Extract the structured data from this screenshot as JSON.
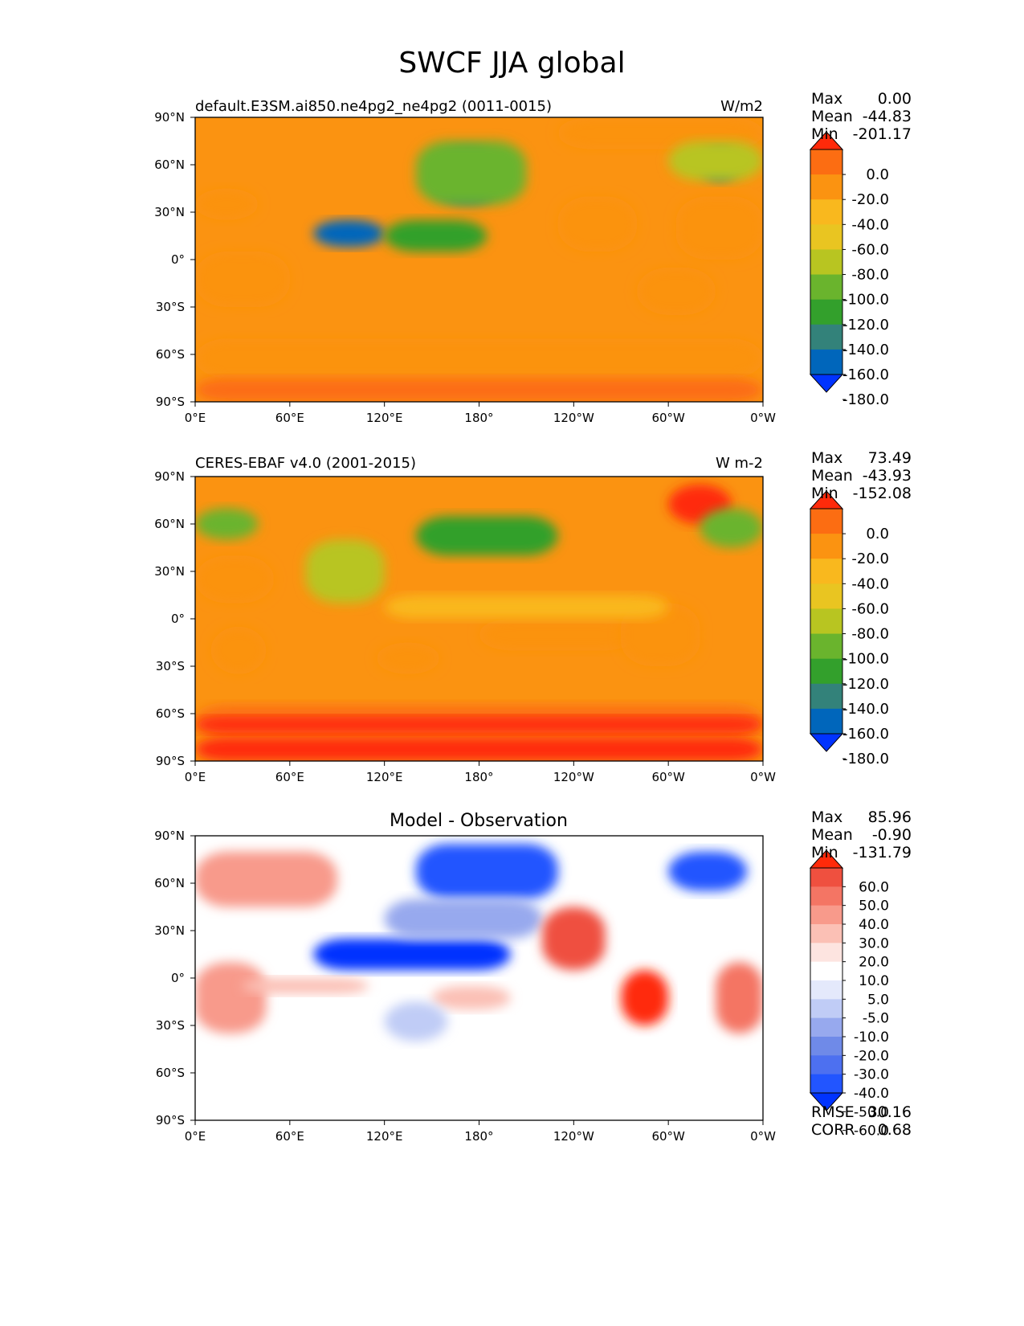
{
  "title": "SWCF JJA global",
  "axes": {
    "lon_ticks": [
      "0°E",
      "60°E",
      "120°E",
      "180°",
      "120°W",
      "60°W",
      "0°W"
    ],
    "lat_ticks": [
      "90°N",
      "60°N",
      "30°N",
      "0°",
      "30°S",
      "60°S",
      "90°S"
    ]
  },
  "colors": {
    "abs_levels": [
      "#0033ff",
      "#0066bb",
      "#33827a",
      "#33a02c",
      "#6ab42d",
      "#b8c521",
      "#e9c521",
      "#f9b81e",
      "#fb9311",
      "#fc6d12",
      "#ff2a0a"
    ],
    "diff_levels": [
      "#0033ff",
      "#2255ff",
      "#4d70f0",
      "#6f8ae8",
      "#97a9ee",
      "#c0ccf6",
      "#e4e9fb",
      "#ffffff",
      "#fde4e0",
      "#fbc0b5",
      "#f89a8b",
      "#f47564",
      "#ef503f",
      "#ff2a0a"
    ]
  },
  "panels": [
    {
      "id": "test",
      "left_title": "default.E3SM.ai850.ne4pg2_ne4pg2 (0011-0015)",
      "right_title": "W/m2",
      "center_title": "",
      "stats": [
        {
          "label": "Max",
          "value": "0.00"
        },
        {
          "label": "Mean",
          "value": "-44.83"
        },
        {
          "label": "Min",
          "value": "-201.17"
        }
      ],
      "colorbar_labels": [
        "0.0",
        "-20.0",
        "-40.0",
        "-60.0",
        "-80.0",
        "-100.0",
        "-120.0",
        "-140.0",
        "-160.0",
        "-180.0"
      ]
    },
    {
      "id": "reference",
      "left_title": "CERES-EBAF v4.0 (2001-2015)",
      "right_title": "W m-2",
      "center_title": "",
      "stats": [
        {
          "label": "Max",
          "value": "73.49"
        },
        {
          "label": "Mean",
          "value": "-43.93"
        },
        {
          "label": "Min",
          "value": "-152.08"
        }
      ],
      "colorbar_labels": [
        "0.0",
        "-20.0",
        "-40.0",
        "-60.0",
        "-80.0",
        "-100.0",
        "-120.0",
        "-140.0",
        "-160.0",
        "-180.0"
      ]
    },
    {
      "id": "diff",
      "left_title": "",
      "right_title": "",
      "center_title": "Model - Observation",
      "stats": [
        {
          "label": "Max",
          "value": "85.96"
        },
        {
          "label": "Mean",
          "value": "-0.90"
        },
        {
          "label": "Min",
          "value": "-131.79"
        }
      ],
      "colorbar_labels": [
        "60.0",
        "50.0",
        "40.0",
        "30.0",
        "20.0",
        "10.0",
        "5.0",
        "-5.0",
        "-10.0",
        "-20.0",
        "-30.0",
        "-40.0",
        "-50.0",
        "-60.0"
      ],
      "metrics": [
        {
          "label": "RMSE",
          "value": "30.16"
        },
        {
          "label": "CORR",
          "value": "0.68"
        }
      ]
    }
  ],
  "chart_data": [
    {
      "type": "heatmap",
      "title": "default.E3SM.ai850.ne4pg2_ne4pg2 (0011-0015)",
      "units": "W/m2",
      "xlim": [
        0,
        360
      ],
      "ylim": [
        -90,
        90
      ],
      "levels": [
        -180,
        -160,
        -140,
        -120,
        -100,
        -80,
        -60,
        -40,
        -20,
        0
      ],
      "max": 0.0,
      "mean": -44.83,
      "min": -201.17,
      "background": -35,
      "features": [
        {
          "lon": [
            230,
            360
          ],
          "lat": [
            70,
            90
          ],
          "value": -35
        },
        {
          "lon": [
            0,
            360
          ],
          "lat": [
            -75,
            -50
          ],
          "value": -22
        },
        {
          "lon": [
            0,
            360
          ],
          "lat": [
            -90,
            -75
          ],
          "value": -20
        },
        {
          "lon": [
            0,
            60
          ],
          "lat": [
            -30,
            5
          ],
          "value": -22
        },
        {
          "lon": [
            150,
            195
          ],
          "lat": [
            35,
            70
          ],
          "value": -160
        },
        {
          "lon": [
            140,
            210
          ],
          "lat": [
            35,
            75
          ],
          "value": -120
        },
        {
          "lon": [
            75,
            120
          ],
          "lat": [
            8,
            25
          ],
          "value": -170
        },
        {
          "lon": [
            120,
            185
          ],
          "lat": [
            5,
            25
          ],
          "value": -130
        },
        {
          "lon": [
            320,
            345
          ],
          "lat": [
            50,
            70
          ],
          "value": -150
        },
        {
          "lon": [
            300,
            360
          ],
          "lat": [
            50,
            75
          ],
          "value": -100
        },
        {
          "lon": [
            230,
            280
          ],
          "lat": [
            5,
            40
          ],
          "value": -22
        },
        {
          "lon": [
            280,
            330
          ],
          "lat": [
            -35,
            -5
          ],
          "value": -22
        },
        {
          "lon": [
            0,
            40
          ],
          "lat": [
            25,
            45
          ],
          "value": -22
        },
        {
          "lon": [
            305,
            360
          ],
          "lat": [
            0,
            40
          ],
          "value": -22
        }
      ]
    },
    {
      "type": "heatmap",
      "title": "CERES-EBAF v4.0 (2001-2015)",
      "units": "W m-2",
      "xlim": [
        0,
        360
      ],
      "ylim": [
        -90,
        90
      ],
      "levels": [
        -180,
        -160,
        -140,
        -120,
        -100,
        -80,
        -60,
        -40,
        -20,
        0
      ],
      "max": 73.49,
      "mean": -43.93,
      "min": -152.08,
      "background": -35,
      "features": [
        {
          "lon": [
            0,
            360
          ],
          "lat": [
            -75,
            -55
          ],
          "value": -15
        },
        {
          "lon": [
            0,
            360
          ],
          "lat": [
            -90,
            -75
          ],
          "value": 5
        },
        {
          "lon": [
            0,
            360
          ],
          "lat": [
            -72,
            -62
          ],
          "value": 5
        },
        {
          "lon": [
            300,
            340
          ],
          "lat": [
            60,
            85
          ],
          "value": 5
        },
        {
          "lon": [
            0,
            50
          ],
          "lat": [
            10,
            40
          ],
          "value": -22
        },
        {
          "lon": [
            10,
            45
          ],
          "lat": [
            -35,
            -5
          ],
          "value": -22
        },
        {
          "lon": [
            140,
            230
          ],
          "lat": [
            40,
            65
          ],
          "value": -130
        },
        {
          "lon": [
            70,
            120
          ],
          "lat": [
            10,
            50
          ],
          "value": -85
        },
        {
          "lon": [
            0,
            40
          ],
          "lat": [
            50,
            70
          ],
          "value": -110
        },
        {
          "lon": [
            320,
            360
          ],
          "lat": [
            45,
            70
          ],
          "value": -120
        },
        {
          "lon": [
            180,
            280
          ],
          "lat": [
            -20,
            0
          ],
          "value": -22
        },
        {
          "lon": [
            270,
            320
          ],
          "lat": [
            -30,
            10
          ],
          "value": -22
        },
        {
          "lon": [
            115,
            155
          ],
          "lat": [
            -35,
            -15
          ],
          "value": -22
        },
        {
          "lon": [
            120,
            300
          ],
          "lat": [
            0,
            15
          ],
          "value": -60
        }
      ]
    },
    {
      "type": "heatmap",
      "title": "Model - Observation",
      "xlim": [
        0,
        360
      ],
      "ylim": [
        -90,
        90
      ],
      "levels": [
        -60,
        -50,
        -40,
        -30,
        -20,
        -10,
        -5,
        5,
        10,
        20,
        30,
        40,
        50,
        60
      ],
      "max": 85.96,
      "mean": -0.9,
      "min": -131.79,
      "rmse": 30.16,
      "corr": 0.68,
      "background": 0,
      "features": [
        {
          "lon": [
            0,
            90
          ],
          "lat": [
            45,
            80
          ],
          "value": 25
        },
        {
          "lon": [
            75,
            200
          ],
          "lat": [
            5,
            25
          ],
          "value": -70
        },
        {
          "lon": [
            140,
            230
          ],
          "lat": [
            50,
            85
          ],
          "value": -60
        },
        {
          "lon": [
            120,
            220
          ],
          "lat": [
            25,
            50
          ],
          "value": -30
        },
        {
          "lon": [
            220,
            260
          ],
          "lat": [
            5,
            45
          ],
          "value": 40
        },
        {
          "lon": [
            270,
            300
          ],
          "lat": [
            -30,
            5
          ],
          "value": 50
        },
        {
          "lon": [
            300,
            350
          ],
          "lat": [
            55,
            80
          ],
          "value": -55
        },
        {
          "lon": [
            0,
            45
          ],
          "lat": [
            -35,
            10
          ],
          "value": 25
        },
        {
          "lon": [
            150,
            200
          ],
          "lat": [
            -20,
            -5
          ],
          "value": 15
        },
        {
          "lon": [
            30,
            110
          ],
          "lat": [
            -10,
            0
          ],
          "value": 15
        },
        {
          "lon": [
            330,
            360
          ],
          "lat": [
            -35,
            10
          ],
          "value": 30
        },
        {
          "lon": [
            120,
            160
          ],
          "lat": [
            -40,
            -15
          ],
          "value": -15
        }
      ]
    }
  ]
}
